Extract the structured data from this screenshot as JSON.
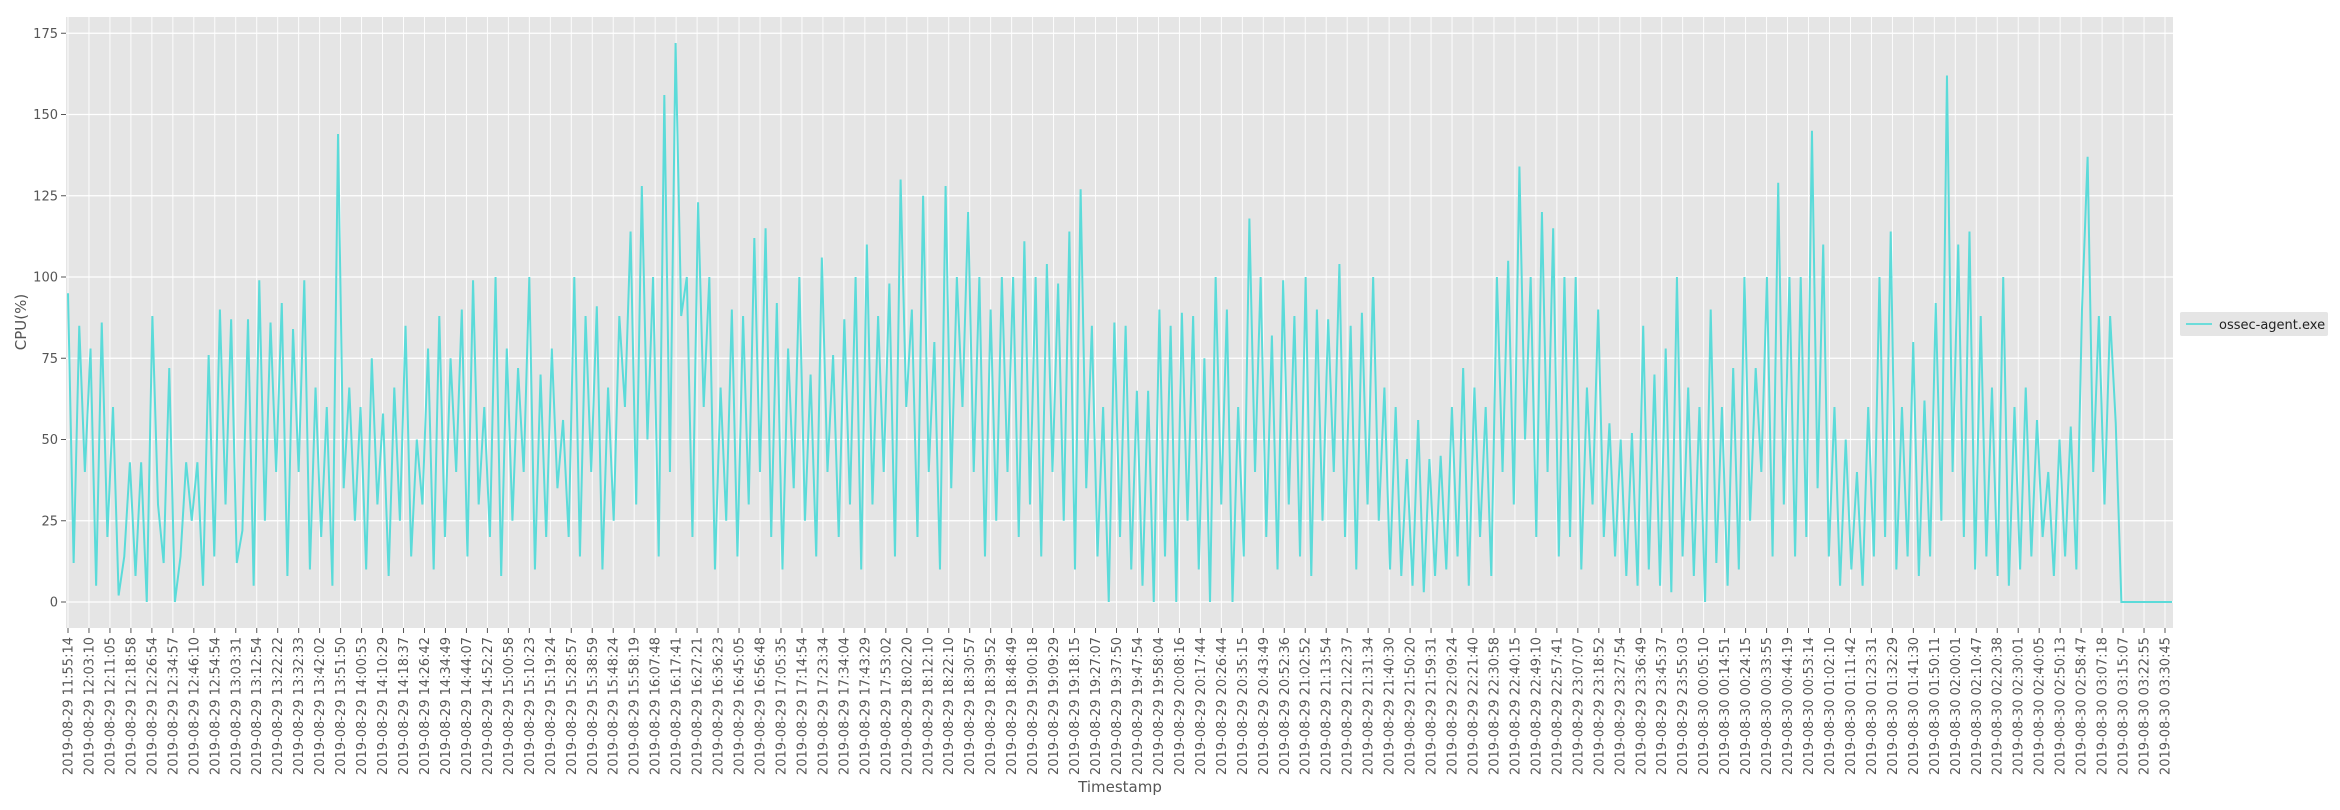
{
  "chart_data": {
    "type": "line",
    "title": "",
    "xlabel": "Timestamp",
    "ylabel": "CPU(%)",
    "ylim": [
      -8,
      180
    ],
    "yticks": [
      0,
      25,
      50,
      75,
      100,
      125,
      150,
      175
    ],
    "grid": true,
    "legend_position": "right",
    "x_tick_labels": [
      "2019-08-29 11:55:14",
      "2019-08-29 12:03:10",
      "2019-08-29 12:11:05",
      "2019-08-29 12:18:58",
      "2019-08-29 12:26:54",
      "2019-08-29 12:34:57",
      "2019-08-29 12:46:10",
      "2019-08-29 12:54:54",
      "2019-08-29 13:03:31",
      "2019-08-29 13:12:54",
      "2019-08-29 13:22:22",
      "2019-08-29 13:32:33",
      "2019-08-29 13:42:02",
      "2019-08-29 13:51:50",
      "2019-08-29 14:00:53",
      "2019-08-29 14:10:29",
      "2019-08-29 14:18:37",
      "2019-08-29 14:26:42",
      "2019-08-29 14:34:49",
      "2019-08-29 14:44:07",
      "2019-08-29 14:52:27",
      "2019-08-29 15:00:58",
      "2019-08-29 15:10:23",
      "2019-08-29 15:19:24",
      "2019-08-29 15:28:57",
      "2019-08-29 15:38:59",
      "2019-08-29 15:48:24",
      "2019-08-29 15:58:19",
      "2019-08-29 16:07:48",
      "2019-08-29 16:17:41",
      "2019-08-29 16:27:21",
      "2019-08-29 16:36:23",
      "2019-08-29 16:45:05",
      "2019-08-29 16:56:48",
      "2019-08-29 17:05:35",
      "2019-08-29 17:14:54",
      "2019-08-29 17:23:34",
      "2019-08-29 17:34:04",
      "2019-08-29 17:43:29",
      "2019-08-29 17:53:02",
      "2019-08-29 18:02:20",
      "2019-08-29 18:12:10",
      "2019-08-29 18:22:10",
      "2019-08-29 18:30:57",
      "2019-08-29 18:39:52",
      "2019-08-29 18:48:49",
      "2019-08-29 19:00:18",
      "2019-08-29 19:09:29",
      "2019-08-29 19:18:15",
      "2019-08-29 19:27:07",
      "2019-08-29 19:37:50",
      "2019-08-29 19:47:54",
      "2019-08-29 19:58:04",
      "2019-08-29 20:08:16",
      "2019-08-29 20:17:44",
      "2019-08-29 20:26:44",
      "2019-08-29 20:35:15",
      "2019-08-29 20:43:49",
      "2019-08-29 20:52:36",
      "2019-08-29 21:02:52",
      "2019-08-29 21:13:54",
      "2019-08-29 21:22:37",
      "2019-08-29 21:31:34",
      "2019-08-29 21:40:30",
      "2019-08-29 21:50:20",
      "2019-08-29 21:59:31",
      "2019-08-29 22:09:24",
      "2019-08-29 22:21:40",
      "2019-08-29 22:30:58",
      "2019-08-29 22:40:15",
      "2019-08-29 22:49:10",
      "2019-08-29 22:57:41",
      "2019-08-29 23:07:07",
      "2019-08-29 23:18:52",
      "2019-08-29 23:27:54",
      "2019-08-29 23:36:49",
      "2019-08-29 23:45:37",
      "2019-08-29 23:55:03",
      "2019-08-30 00:05:10",
      "2019-08-30 00:14:51",
      "2019-08-30 00:24:15",
      "2019-08-30 00:33:55",
      "2019-08-30 00:44:19",
      "2019-08-30 00:53:14",
      "2019-08-30 01:02:10",
      "2019-08-30 01:11:42",
      "2019-08-30 01:23:31",
      "2019-08-30 01:32:29",
      "2019-08-30 01:41:30",
      "2019-08-30 01:50:11",
      "2019-08-30 02:00:01",
      "2019-08-30 02:10:47",
      "2019-08-30 02:20:38",
      "2019-08-30 02:30:01",
      "2019-08-30 02:40:05",
      "2019-08-30 02:50:13",
      "2019-08-30 02:58:47",
      "2019-08-30 03:07:18",
      "2019-08-30 03:15:07",
      "2019-08-30 03:22:55",
      "2019-08-30 03:30:45"
    ],
    "series": [
      {
        "name": "ossec-agent.exe",
        "color": "#5bdbd9",
        "values": [
          95,
          12,
          85,
          40,
          78,
          5,
          86,
          20,
          60,
          2,
          14,
          43,
          8,
          43,
          0,
          88,
          30,
          12,
          72,
          0,
          14,
          43,
          25,
          43,
          5,
          76,
          14,
          90,
          30,
          87,
          12,
          22,
          87,
          5,
          99,
          25,
          86,
          40,
          92,
          8,
          84,
          40,
          99,
          10,
          66,
          20,
          60,
          5,
          144,
          35,
          66,
          25,
          60,
          10,
          75,
          30,
          58,
          8,
          66,
          25,
          85,
          14,
          50,
          30,
          78,
          10,
          88,
          20,
          75,
          40,
          90,
          14,
          99,
          30,
          60,
          20,
          100,
          8,
          78,
          25,
          72,
          40,
          100,
          10,
          70,
          20,
          78,
          35,
          56,
          20,
          100,
          14,
          88,
          40,
          91,
          10,
          66,
          25,
          88,
          60,
          114,
          30,
          128,
          50,
          100,
          14,
          156,
          40,
          172,
          88,
          100,
          20,
          123,
          60,
          100,
          10,
          66,
          25,
          90,
          14,
          88,
          30,
          112,
          40,
          115,
          20,
          92,
          10,
          78,
          35,
          100,
          25,
          70,
          14,
          106,
          40,
          76,
          20,
          87,
          30,
          100,
          10,
          110,
          30,
          88,
          40,
          98,
          14,
          130,
          60,
          90,
          20,
          125,
          40,
          80,
          10,
          128,
          35,
          100,
          60,
          120,
          40,
          100,
          14,
          90,
          25,
          100,
          40,
          100,
          20,
          111,
          30,
          100,
          14,
          104,
          40,
          98,
          25,
          114,
          10,
          127,
          35,
          85,
          14,
          60,
          0,
          86,
          20,
          85,
          10,
          65,
          5,
          65,
          0,
          90,
          14,
          85,
          0,
          89,
          25,
          88,
          10,
          75,
          0,
          100,
          30,
          90,
          0,
          60,
          14,
          118,
          40,
          100,
          20,
          82,
          10,
          99,
          30,
          88,
          14,
          100,
          8,
          90,
          25,
          87,
          40,
          104,
          20,
          85,
          10,
          89,
          30,
          100,
          25,
          66,
          10,
          60,
          8,
          44,
          5,
          56,
          3,
          44,
          8,
          45,
          10,
          60,
          14,
          72,
          5,
          66,
          20,
          60,
          8,
          100,
          40,
          105,
          30,
          134,
          50,
          100,
          20,
          120,
          40,
          115,
          14,
          100,
          20,
          100,
          10,
          66,
          30,
          90,
          20,
          55,
          14,
          50,
          8,
          52,
          5,
          85,
          10,
          70,
          5,
          78,
          3,
          100,
          14,
          66,
          8,
          60,
          0,
          90,
          12,
          60,
          5,
          72,
          10,
          100,
          25,
          72,
          40,
          100,
          14,
          129,
          30,
          100,
          14,
          100,
          20,
          145,
          35,
          110,
          14,
          60,
          5,
          50,
          10,
          40,
          5,
          60,
          14,
          100,
          20,
          114,
          10,
          60,
          14,
          80,
          8,
          62,
          14,
          92,
          25,
          162,
          40,
          110,
          20,
          114,
          10,
          88,
          14,
          66,
          8,
          100,
          5,
          60,
          10,
          66,
          14,
          56,
          20,
          40,
          8,
          50,
          14,
          54,
          10,
          90,
          137,
          40,
          88,
          30,
          88,
          55,
          0,
          0,
          0,
          0,
          0,
          0,
          0,
          0,
          0,
          0
        ]
      }
    ]
  }
}
